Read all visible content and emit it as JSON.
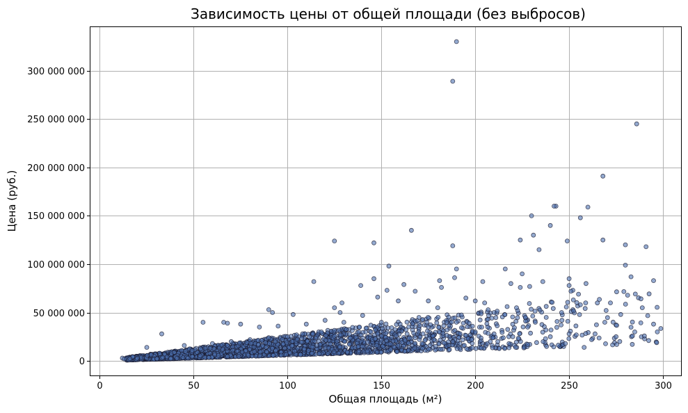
{
  "chart_data": {
    "type": "scatter",
    "title": "Зависимость цены от общей площади (без выбросов)",
    "xlabel": "Общая площадь (м²)",
    "ylabel": "Цена (руб.)",
    "xlim": [
      -5,
      310
    ],
    "ylim": [
      -15000000,
      345000000
    ],
    "xticks": [
      0,
      50,
      100,
      150,
      200,
      250,
      300
    ],
    "xtick_labels": [
      "0",
      "50",
      "100",
      "150",
      "200",
      "250",
      "300"
    ],
    "yticks": [
      0,
      50000000,
      100000000,
      150000000,
      200000000,
      250000000,
      300000000
    ],
    "ytick_labels": [
      "0",
      "50 000 000",
      "100 000 000",
      "150 000 000",
      "200 000 000",
      "250 000 000",
      "300 000 000"
    ],
    "grid": true,
    "marker_color": "#4c72b0",
    "marker_edge": "#1a1a2e",
    "marker_alpha": 0.6,
    "points": [
      [
        190,
        330000000
      ],
      [
        188,
        289000000
      ],
      [
        286,
        245000000
      ],
      [
        268,
        191000000
      ],
      [
        243,
        160000000
      ],
      [
        242,
        160000000
      ],
      [
        260,
        159000000
      ],
      [
        230,
        150000000
      ],
      [
        256,
        148000000
      ],
      [
        240,
        140000000
      ],
      [
        166,
        135000000
      ],
      [
        231,
        130000000
      ],
      [
        125,
        124000000
      ],
      [
        146,
        122000000
      ],
      [
        224,
        125000000
      ],
      [
        268,
        125000000
      ],
      [
        249,
        124000000
      ],
      [
        188,
        119000000
      ],
      [
        280,
        120000000
      ],
      [
        291,
        118000000
      ],
      [
        234,
        115000000
      ],
      [
        154,
        98000000
      ],
      [
        280,
        99000000
      ],
      [
        216,
        95000000
      ],
      [
        190,
        95000000
      ],
      [
        225,
        90000000
      ],
      [
        283,
        87000000
      ],
      [
        189,
        86000000
      ],
      [
        146,
        85000000
      ],
      [
        250,
        85000000
      ],
      [
        295,
        83000000
      ],
      [
        114,
        82000000
      ],
      [
        181,
        83000000
      ],
      [
        204,
        82000000
      ],
      [
        236,
        82000000
      ],
      [
        259,
        80000000
      ],
      [
        219,
        80000000
      ],
      [
        250,
        78000000
      ],
      [
        139,
        78000000
      ],
      [
        162,
        79000000
      ],
      [
        229,
        77000000
      ],
      [
        224,
        76000000
      ],
      [
        252,
        73000000
      ],
      [
        182,
        76000000
      ],
      [
        251,
        72000000
      ],
      [
        153,
        73000000
      ],
      [
        168,
        72000000
      ],
      [
        255,
        69000000
      ],
      [
        200,
        62000000
      ],
      [
        148,
        66000000
      ],
      [
        195,
        65000000
      ],
      [
        129,
        60000000
      ],
      [
        159,
        62000000
      ],
      [
        175,
        62000000
      ],
      [
        272,
        60000000
      ],
      [
        205,
        60000000
      ],
      [
        256,
        58000000
      ],
      [
        222,
        55000000
      ],
      [
        289,
        55000000
      ],
      [
        90,
        53000000
      ],
      [
        125,
        55000000
      ],
      [
        180,
        55000000
      ],
      [
        246,
        50000000
      ],
      [
        92,
        50000000
      ],
      [
        128,
        50000000
      ],
      [
        210,
        50000000
      ],
      [
        103,
        48000000
      ],
      [
        140,
        47000000
      ],
      [
        170,
        45000000
      ],
      [
        190,
        40000000
      ],
      [
        232,
        40000000
      ],
      [
        269,
        40000000
      ],
      [
        295,
        38000000
      ],
      [
        55,
        40000000
      ],
      [
        66,
        40000000
      ],
      [
        68,
        39000000
      ],
      [
        75,
        38000000
      ],
      [
        85,
        35000000
      ],
      [
        95,
        36000000
      ],
      [
        110,
        38000000
      ],
      [
        120,
        42000000
      ],
      [
        130,
        40000000
      ],
      [
        150,
        40000000
      ],
      [
        160,
        38000000
      ],
      [
        175,
        35000000
      ],
      [
        185,
        32000000
      ],
      [
        200,
        30000000
      ],
      [
        210,
        28000000
      ],
      [
        220,
        25000000
      ],
      [
        240,
        25000000
      ],
      [
        250,
        28000000
      ],
      [
        262,
        22000000
      ],
      [
        275,
        25000000
      ],
      [
        285,
        30000000
      ],
      [
        297,
        30000000
      ],
      [
        33,
        28000000
      ],
      [
        25,
        14000000
      ],
      [
        45,
        16000000
      ],
      [
        60,
        18000000
      ],
      [
        70,
        20000000
      ],
      [
        80,
        22000000
      ],
      [
        90,
        24000000
      ],
      [
        100,
        25000000
      ],
      [
        108,
        28000000
      ],
      [
        118,
        30000000
      ],
      [
        128,
        27000000
      ],
      [
        138,
        30000000
      ],
      [
        148,
        28000000
      ],
      [
        158,
        26000000
      ],
      [
        168,
        24000000
      ],
      [
        178,
        22000000
      ],
      [
        188,
        20000000
      ],
      [
        198,
        22000000
      ],
      [
        208,
        20000000
      ],
      [
        218,
        18000000
      ],
      [
        228,
        17000000
      ],
      [
        238,
        15000000
      ],
      [
        248,
        18000000
      ],
      [
        258,
        14000000
      ],
      [
        12,
        3000000
      ],
      [
        13,
        2000000
      ],
      [
        16,
        2500000
      ]
    ],
    "dense_band": {
      "x_range": [
        14,
        300
      ],
      "y_per_m2_min": 60000,
      "y_per_m2_max": 260000,
      "count": 2400,
      "point_density": [
        [
          14,
          1.0
        ],
        [
          40,
          1.0
        ],
        [
          100,
          0.75
        ],
        [
          150,
          0.55
        ],
        [
          200,
          0.22
        ],
        [
          250,
          0.1
        ],
        [
          300,
          0.05
        ]
      ]
    }
  }
}
